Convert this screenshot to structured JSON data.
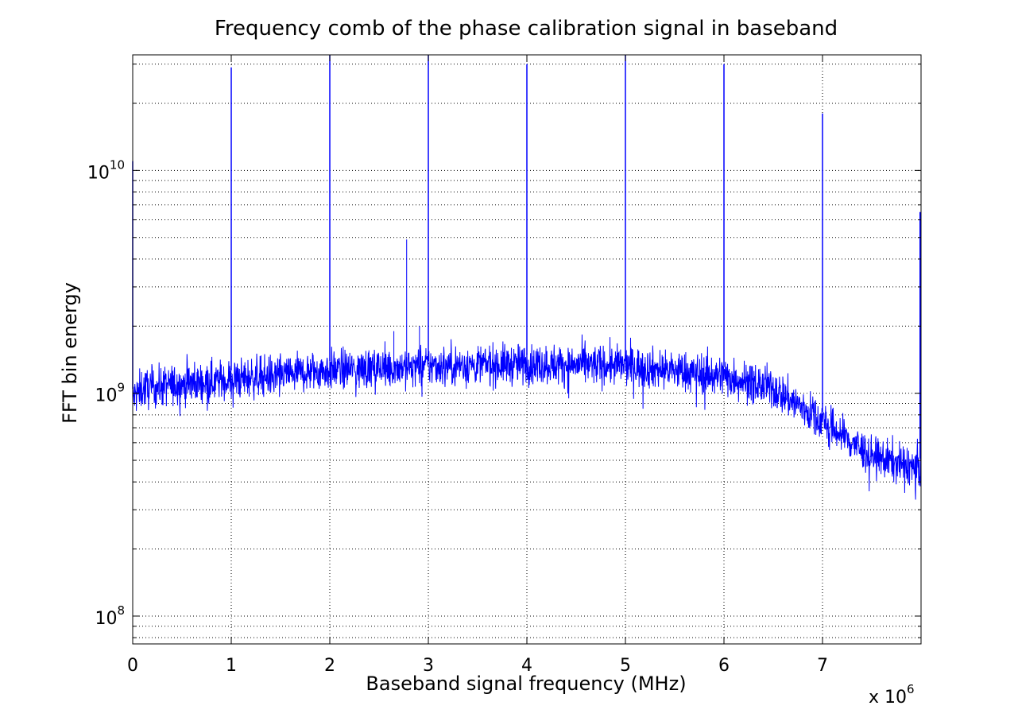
{
  "chart_data": {
    "type": "line",
    "title": "Frequency comb of the phase calibration signal in baseband",
    "xlabel": "Baseband signal frequency (MHz)",
    "ylabel": "FFT bin energy",
    "x_multiplier_label": "x 10",
    "x_multiplier_exponent": "6",
    "x_scale": "linear",
    "y_scale": "log",
    "xlim": [
      0,
      8000000
    ],
    "ylim": [
      75000000,
      33000000000
    ],
    "x_ticks": [
      0,
      1000000,
      2000000,
      3000000,
      4000000,
      5000000,
      6000000,
      7000000
    ],
    "x_tick_labels": [
      "0",
      "1",
      "2",
      "3",
      "4",
      "5",
      "6",
      "7"
    ],
    "y_ticks": [
      100000000,
      1000000000,
      10000000000
    ],
    "y_tick_labels": [
      {
        "base": "10",
        "exp": "8"
      },
      {
        "base": "10",
        "exp": "9"
      },
      {
        "base": "10",
        "exp": "10"
      }
    ],
    "grid": true,
    "series_color": "#0000ff",
    "noise_floor": {
      "x": [
        0,
        100000,
        500000,
        1000000,
        2000000,
        3000000,
        4000000,
        5000000,
        6000000,
        6500000,
        7000000,
        7500000,
        8000000
      ],
      "y": [
        950000000,
        1050000000,
        1100000000,
        1150000000,
        1270000000,
        1330000000,
        1350000000,
        1330000000,
        1200000000,
        1050000000,
        750000000,
        520000000,
        460000000
      ]
    },
    "tones": [
      {
        "x": 0,
        "y": 11000000000
      },
      {
        "x": 1000000,
        "y": 29000000000
      },
      {
        "x": 2000000,
        "y": 33000000000
      },
      {
        "x": 3000000,
        "y": 33000000000
      },
      {
        "x": 4000000,
        "y": 30000000000
      },
      {
        "x": 5000000,
        "y": 33000000000
      },
      {
        "x": 6000000,
        "y": 30000000000
      },
      {
        "x": 7000000,
        "y": 18000000000
      },
      {
        "x": 7990000,
        "y": 6500000000
      }
    ],
    "minor_spurs": [
      {
        "x": 2780000,
        "y": 4900000000
      },
      {
        "x": 2650000,
        "y": 1900000000
      },
      {
        "x": 2910000,
        "y": 2000000000
      }
    ]
  }
}
